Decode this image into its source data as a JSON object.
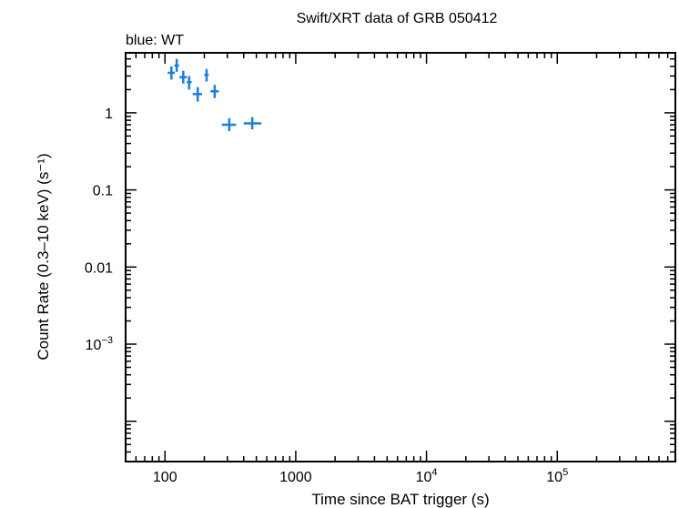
{
  "chart_data": {
    "type": "scatter",
    "title": "Swift/XRT data of GRB 050412",
    "subtitle": "blue: WT",
    "xlabel": "Time since BAT trigger (s)",
    "ylabel": "Count Rate (0.3–10 keV) (s⁻¹)",
    "xscale": "log",
    "yscale": "log",
    "xlim": [
      50,
      800000
    ],
    "ylim": [
      3e-05,
      6
    ],
    "grid": false,
    "xticks": [
      {
        "value": 100,
        "label": "100"
      },
      {
        "value": 1000,
        "label": "1000"
      },
      {
        "value": 10000,
        "label": "10",
        "exp": "4"
      },
      {
        "value": 100000,
        "label": "10",
        "exp": "5"
      }
    ],
    "yticks": [
      {
        "value": 1,
        "label": "1"
      },
      {
        "value": 0.1,
        "label": "0.1"
      },
      {
        "value": 0.01,
        "label": "0.01"
      },
      {
        "value": 0.001,
        "label": "10",
        "exp": "−3"
      }
    ],
    "series": [
      {
        "name": "WT",
        "color": "#1a7de0",
        "points": [
          {
            "x": 112,
            "y": 3.3,
            "xlo": 105,
            "xhi": 119,
            "ylo": 2.7,
            "yhi": 4.0
          },
          {
            "x": 123,
            "y": 4.1,
            "xlo": 118,
            "xhi": 128,
            "ylo": 3.4,
            "yhi": 5.0
          },
          {
            "x": 138,
            "y": 2.9,
            "xlo": 129,
            "xhi": 147,
            "ylo": 2.4,
            "yhi": 3.5
          },
          {
            "x": 153,
            "y": 2.5,
            "xlo": 147,
            "xhi": 160,
            "ylo": 2.0,
            "yhi": 3.0
          },
          {
            "x": 178,
            "y": 1.75,
            "xlo": 163,
            "xhi": 192,
            "ylo": 1.4,
            "yhi": 2.15
          },
          {
            "x": 208,
            "y": 3.1,
            "xlo": 200,
            "xhi": 216,
            "ylo": 2.55,
            "yhi": 3.7
          },
          {
            "x": 240,
            "y": 1.9,
            "xlo": 223,
            "xhi": 258,
            "ylo": 1.55,
            "yhi": 2.3
          },
          {
            "x": 310,
            "y": 0.7,
            "xlo": 272,
            "xhi": 350,
            "ylo": 0.58,
            "yhi": 0.85
          },
          {
            "x": 465,
            "y": 0.73,
            "xlo": 400,
            "xhi": 545,
            "ylo": 0.61,
            "yhi": 0.88
          }
        ]
      }
    ]
  }
}
